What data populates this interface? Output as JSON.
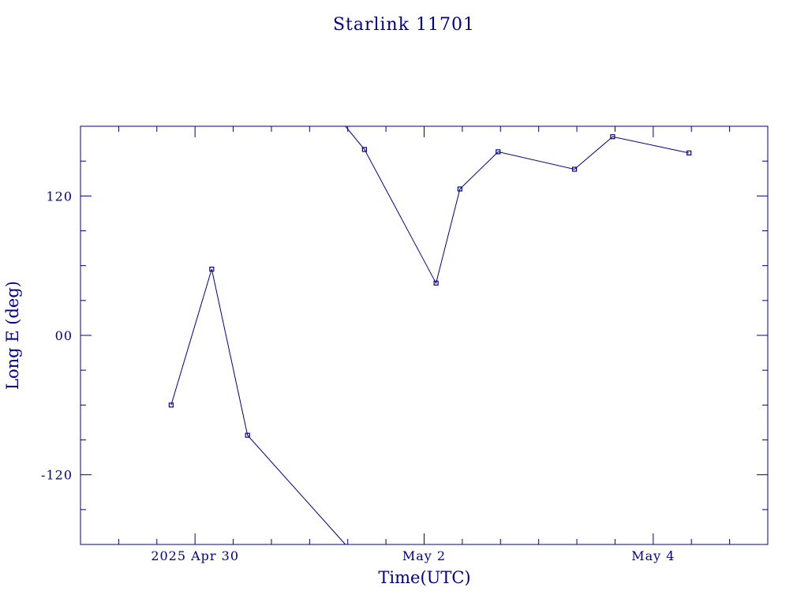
{
  "chart_data": {
    "type": "line",
    "title": "Starlink 11701",
    "xlabel": "Time(UTC)",
    "ylabel": "Long E (deg)",
    "color": "#00008b",
    "xlim": [
      "2025-04-29T00:00",
      "2025-05-05T00:00"
    ],
    "ylim": [
      -180,
      180
    ],
    "x_tick_labels": [
      {
        "x": "2025-04-30T00:00",
        "label": "2025 Apr 30"
      },
      {
        "x": "2025-05-02T00:00",
        "label": "May  2"
      },
      {
        "x": "2025-05-04T00:00",
        "label": "May  4"
      }
    ],
    "x_minor_ticks": [
      "2025-04-29T08:00",
      "2025-04-29T16:00",
      "2025-04-30T08:00",
      "2025-04-30T16:00",
      "2025-05-01T00:00",
      "2025-05-01T08:00",
      "2025-05-01T16:00",
      "2025-05-02T08:00",
      "2025-05-02T16:00",
      "2025-05-03T00:00",
      "2025-05-03T08:00",
      "2025-05-03T16:00",
      "2025-05-04T08:00",
      "2025-05-04T16:00"
    ],
    "y_tick_labels": [
      {
        "y": 120,
        "label": "120"
      },
      {
        "y": 0,
        "label": "00"
      },
      {
        "y": -120,
        "label": "-120"
      }
    ],
    "y_minor_ticks": [
      150,
      90,
      60,
      30,
      -30,
      -60,
      -90,
      -150
    ],
    "series": [
      {
        "segments": [
          [
            {
              "x": "2025-04-29T19:00",
              "y": -60
            },
            {
              "x": "2025-04-30T03:30",
              "y": 57
            },
            {
              "x": "2025-04-30T11:00",
              "y": -86
            },
            {
              "x": "2025-05-01T07:30",
              "y": -180
            }
          ],
          [
            {
              "x": "2025-05-01T07:30",
              "y": 180
            },
            {
              "x": "2025-05-01T11:30",
              "y": 160
            },
            {
              "x": "2025-05-02T02:30",
              "y": 45
            },
            {
              "x": "2025-05-02T07:30",
              "y": 126
            },
            {
              "x": "2025-05-02T15:30",
              "y": 158
            },
            {
              "x": "2025-05-03T07:30",
              "y": 143
            },
            {
              "x": "2025-05-03T15:30",
              "y": 171
            },
            {
              "x": "2025-05-04T07:30",
              "y": 157
            }
          ]
        ],
        "markers": [
          {
            "x": "2025-04-29T19:00",
            "y": -60
          },
          {
            "x": "2025-04-30T03:30",
            "y": 57
          },
          {
            "x": "2025-04-30T11:00",
            "y": -86
          },
          {
            "x": "2025-05-01T11:30",
            "y": 160
          },
          {
            "x": "2025-05-02T02:30",
            "y": 45
          },
          {
            "x": "2025-05-02T07:30",
            "y": 126
          },
          {
            "x": "2025-05-02T15:30",
            "y": 158
          },
          {
            "x": "2025-05-03T07:30",
            "y": 143
          },
          {
            "x": "2025-05-03T15:30",
            "y": 171
          },
          {
            "x": "2025-05-04T07:30",
            "y": 157
          }
        ]
      }
    ]
  }
}
